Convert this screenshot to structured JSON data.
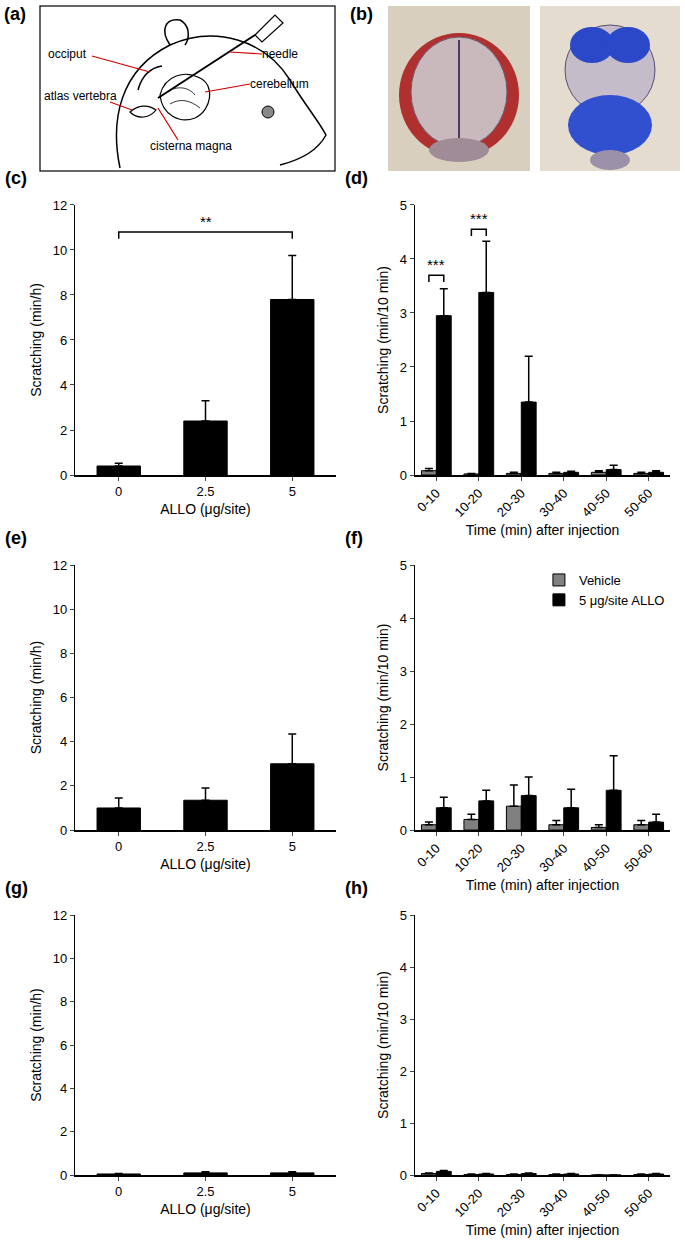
{
  "diagram": {
    "label": "(a)",
    "parts": [
      "occiput",
      "needle",
      "atlas vertebra",
      "cerebellum",
      "cisterna magna"
    ]
  },
  "photos": {
    "label": "(b)"
  },
  "chart_data": [
    {
      "title": "(c)",
      "type": "bar",
      "categories": [
        "0",
        "2.5",
        "5"
      ],
      "values": [
        0.4,
        2.4,
        7.8
      ],
      "errors": [
        0.12,
        0.9,
        1.95
      ],
      "color": "#000000",
      "x_label": "ALLO (μg/site)",
      "y_label": "Scratching (min/h)",
      "ylim": [
        0,
        12
      ],
      "yticks": [
        0,
        2,
        4,
        6,
        8,
        10,
        12
      ],
      "annotations": [
        {
          "text": "**",
          "from": "0",
          "to": "5",
          "y": 10.8
        }
      ]
    },
    {
      "title": "(d)",
      "type": "bar",
      "categories": [
        "0-10",
        "10-20",
        "20-30",
        "30-40",
        "40-50",
        "50-60"
      ],
      "series": [
        {
          "color": "#808080",
          "values": [
            0.08,
            0.02,
            0.03,
            0.03,
            0.05,
            0.03
          ],
          "errors": [
            0.04,
            0.01,
            0.02,
            0.02,
            0.03,
            0.02
          ]
        },
        {
          "color": "#000000",
          "values": [
            2.95,
            3.38,
            1.35,
            0.05,
            0.1,
            0.05
          ],
          "errors": [
            0.5,
            0.95,
            0.85,
            0.02,
            0.08,
            0.03
          ]
        }
      ],
      "x_label": "Time (min) after injection",
      "y_label": "Scratching (min/10 min)",
      "ylim": [
        0,
        5
      ],
      "yticks": [
        0,
        1,
        2,
        3,
        4,
        5
      ],
      "annotations": [
        {
          "text": "***",
          "category": "0-10",
          "y": 3.7
        },
        {
          "text": "***",
          "category": "10-20",
          "y": 4.55
        }
      ]
    },
    {
      "title": "(e)",
      "type": "bar",
      "categories": [
        "0",
        "2.5",
        "5"
      ],
      "values": [
        1.0,
        1.35,
        3.0
      ],
      "errors": [
        0.45,
        0.55,
        1.35
      ],
      "color": "#000000",
      "x_label": "ALLO (μg/site)",
      "y_label": "Scratching (min/h)",
      "ylim": [
        0,
        12
      ],
      "yticks": [
        0,
        2,
        4,
        6,
        8,
        10,
        12
      ]
    },
    {
      "title": "(f)",
      "type": "bar",
      "categories": [
        "0-10",
        "10-20",
        "20-30",
        "30-40",
        "40-50",
        "50-60"
      ],
      "series": [
        {
          "name": "Vehicle",
          "color": "#808080",
          "values": [
            0.1,
            0.2,
            0.45,
            0.1,
            0.05,
            0.1
          ],
          "errors": [
            0.05,
            0.1,
            0.4,
            0.08,
            0.05,
            0.08
          ]
        },
        {
          "name": "5 μg/site ALLO",
          "color": "#000000",
          "values": [
            0.42,
            0.55,
            0.65,
            0.42,
            0.75,
            0.15
          ],
          "errors": [
            0.2,
            0.2,
            0.35,
            0.35,
            0.65,
            0.15
          ]
        }
      ],
      "legend": "top right",
      "x_label": "Time (min) after injection",
      "y_label": "Scratching (min/10 min)",
      "ylim": [
        0,
        5
      ],
      "yticks": [
        0,
        1,
        2,
        3,
        4,
        5
      ]
    },
    {
      "title": "(g)",
      "type": "bar",
      "categories": [
        "0",
        "2.5",
        "5"
      ],
      "values": [
        0.05,
        0.1,
        0.1
      ],
      "errors": [
        0.02,
        0.05,
        0.05
      ],
      "color": "#000000",
      "x_label": "ALLO (μg/site)",
      "y_label": "Scratching (min/h)",
      "ylim": [
        0,
        12
      ],
      "yticks": [
        0,
        2,
        4,
        6,
        8,
        10,
        12
      ]
    },
    {
      "title": "(h)",
      "type": "bar",
      "categories": [
        "0-10",
        "10-20",
        "20-30",
        "30-40",
        "40-50",
        "50-60"
      ],
      "series": [
        {
          "color": "#808080",
          "values": [
            0.03,
            0.01,
            0.01,
            0.01,
            0,
            0.01
          ],
          "errors": [
            0.01,
            0.01,
            0.01,
            0.01,
            0,
            0.01
          ]
        },
        {
          "color": "#000000",
          "values": [
            0.07,
            0.02,
            0.03,
            0.02,
            0,
            0.02
          ],
          "errors": [
            0.02,
            0.01,
            0.01,
            0.01,
            0,
            0.01
          ]
        }
      ],
      "x_label": "Time (min) after injection",
      "y_label": "Scratching (min/10 min)",
      "ylim": [
        0,
        5
      ],
      "yticks": [
        0,
        1,
        2,
        3,
        4,
        5
      ]
    }
  ]
}
